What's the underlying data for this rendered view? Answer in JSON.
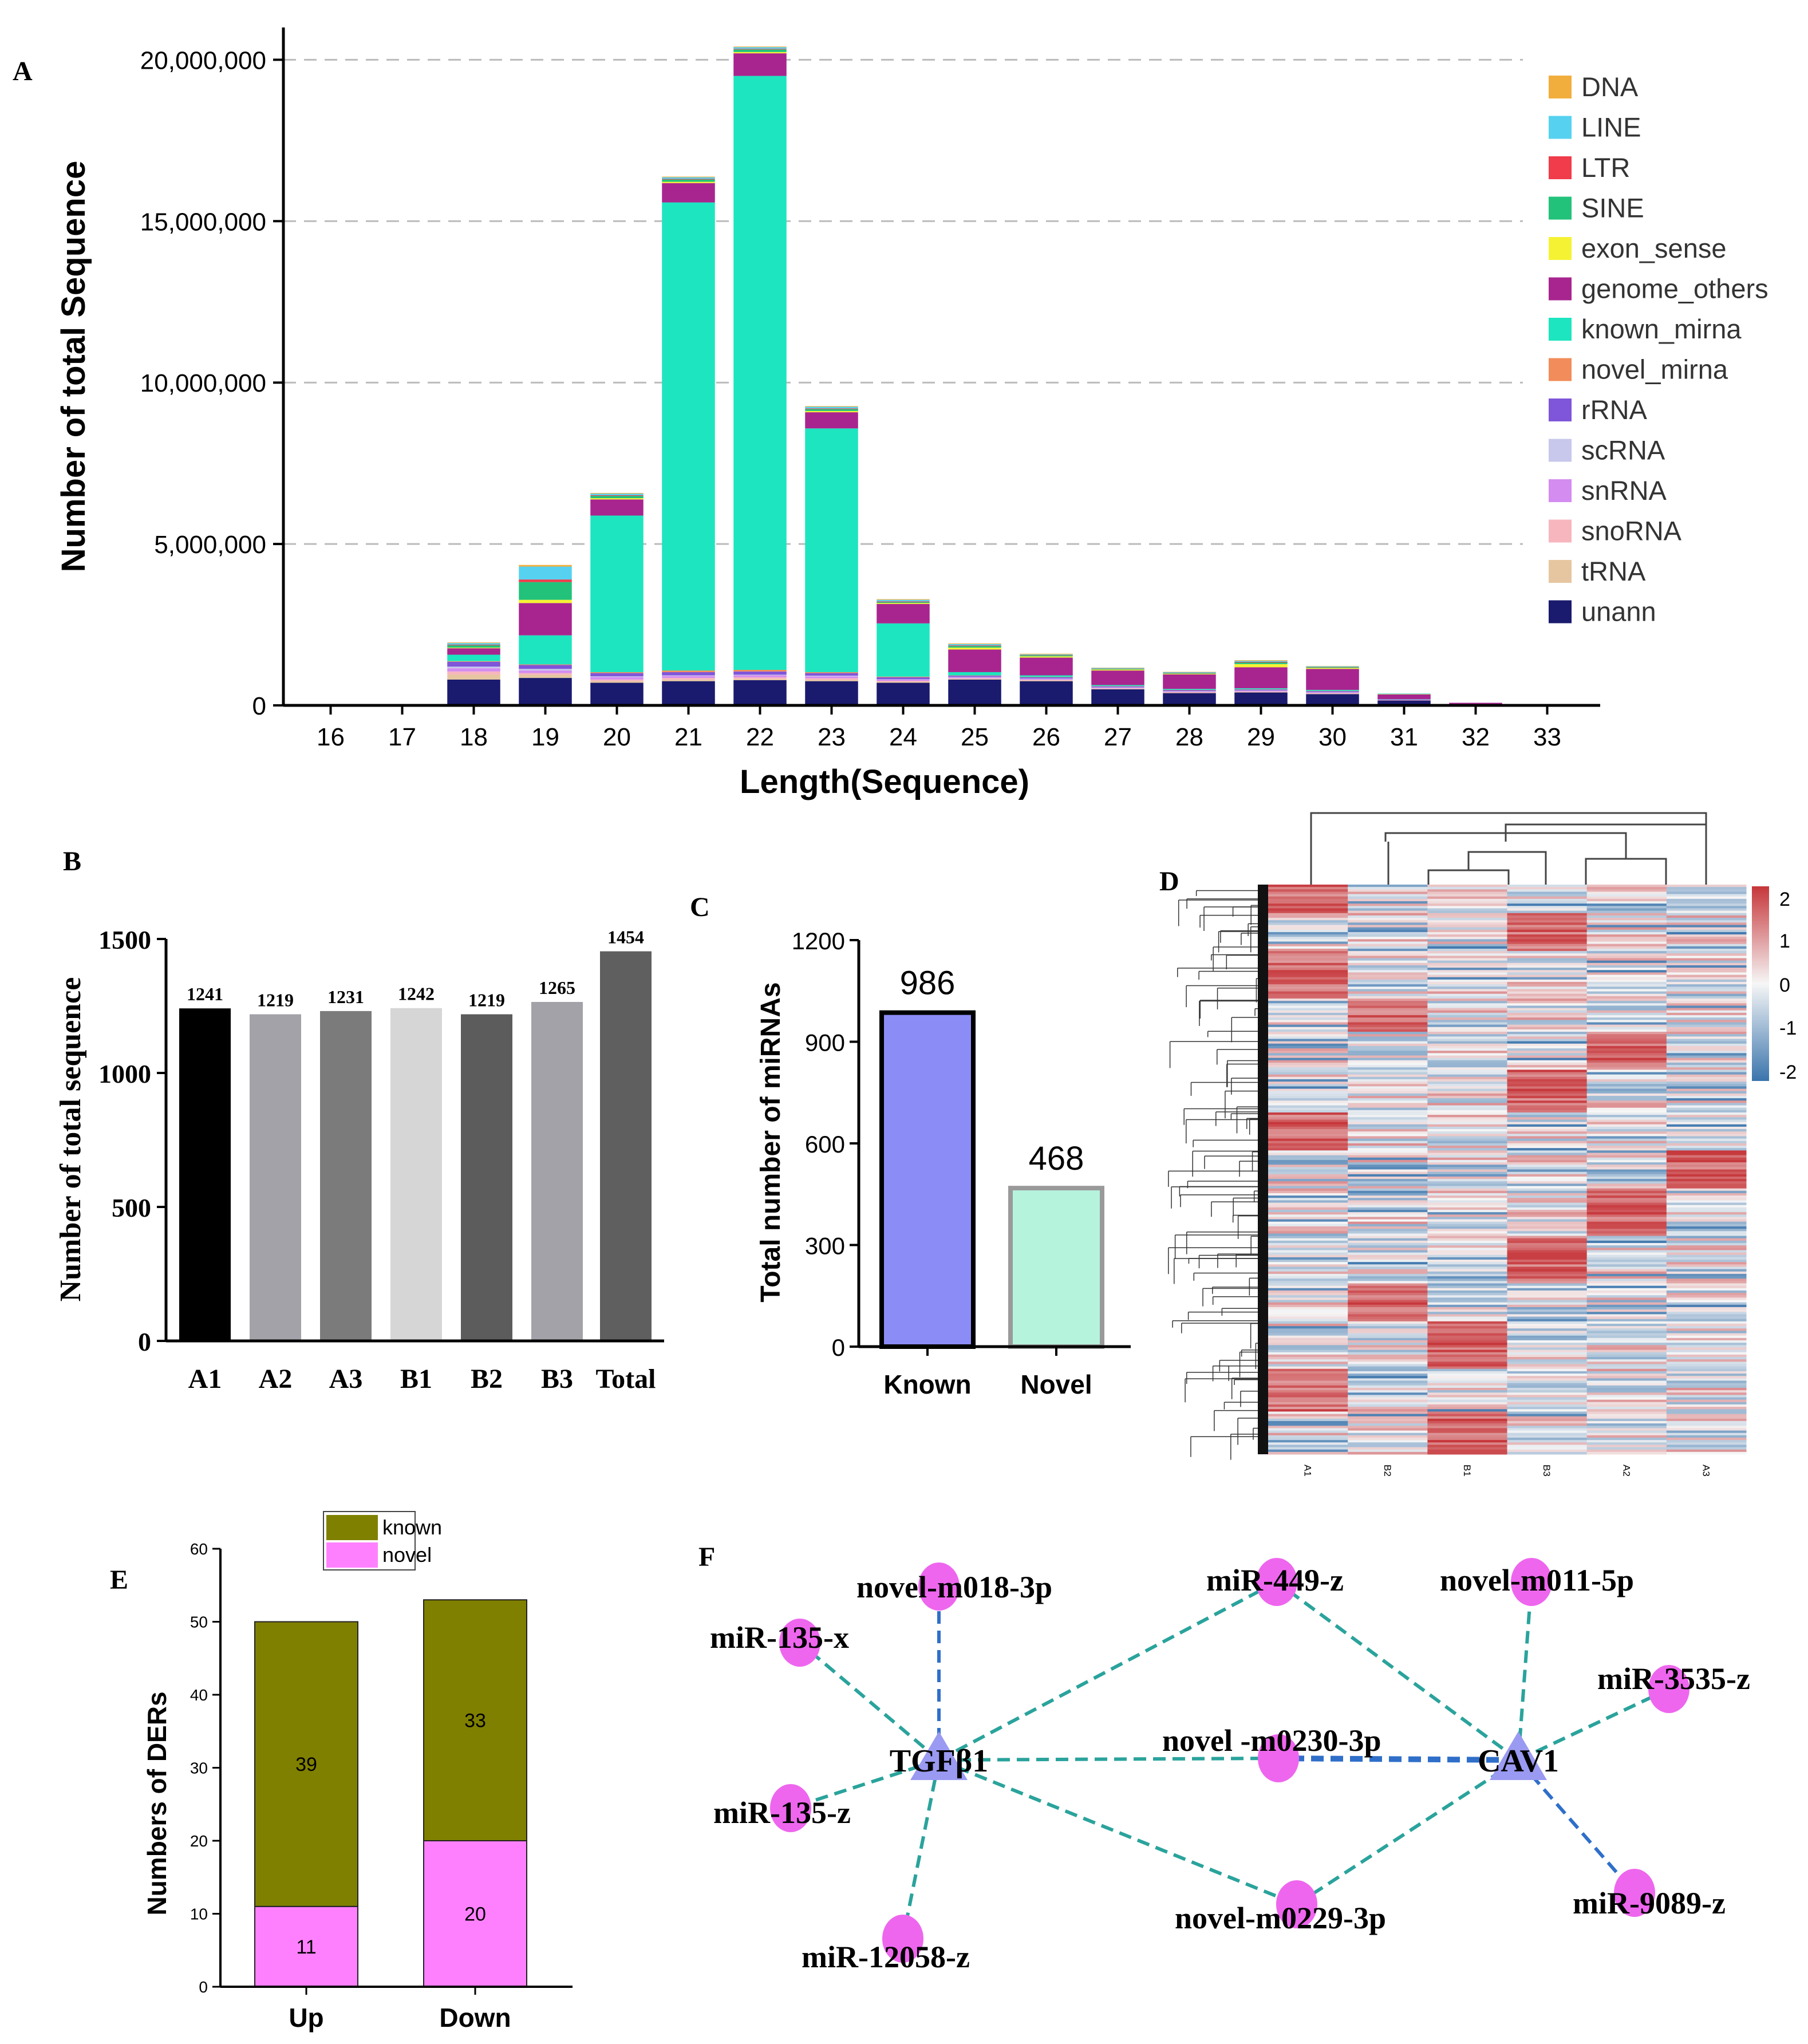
{
  "panels": {
    "A": {
      "label": "A"
    },
    "B": {
      "label": "B"
    },
    "C": {
      "label": "C"
    },
    "D": {
      "label": "D"
    },
    "E": {
      "label": "E"
    },
    "F": {
      "label": "F"
    }
  },
  "chart_data": [
    {
      "id": "A",
      "type": "bar",
      "stacked": true,
      "xlabel": "Length(Sequence)",
      "ylabel": "Number of total Sequence",
      "ylim": [
        0,
        21000000
      ],
      "yticks": [
        0,
        5000000,
        10000000,
        15000000,
        20000000
      ],
      "ytick_labels": [
        "0",
        "5,000,000",
        "10,000,000",
        "15,000,000",
        "20,000,000"
      ],
      "grid": "dashed horizontal",
      "legend_position": "right",
      "categories": [
        "16",
        "17",
        "18",
        "19",
        "20",
        "21",
        "22",
        "23",
        "24",
        "25",
        "26",
        "27",
        "28",
        "29",
        "30",
        "31",
        "32",
        "33"
      ],
      "series": [
        {
          "name": "unann",
          "color": "#1a1a6e",
          "values": [
            0,
            0,
            800000,
            850000,
            700000,
            750000,
            780000,
            750000,
            700000,
            800000,
            750000,
            500000,
            380000,
            400000,
            350000,
            150000,
            30000,
            0
          ]
        },
        {
          "name": "tRNA",
          "color": "#e6c6a0",
          "values": [
            0,
            0,
            150000,
            100000,
            50000,
            50000,
            40000,
            40000,
            30000,
            20000,
            20000,
            10000,
            10000,
            10000,
            10000,
            0,
            0,
            0
          ]
        },
        {
          "name": "snoRNA",
          "color": "#f7b6bd",
          "values": [
            0,
            0,
            100000,
            50000,
            50000,
            50000,
            50000,
            50000,
            30000,
            20000,
            20000,
            20000,
            20000,
            20000,
            20000,
            10000,
            0,
            0
          ]
        },
        {
          "name": "snRNA",
          "color": "#d48cf0",
          "values": [
            0,
            0,
            100000,
            80000,
            80000,
            60000,
            60000,
            60000,
            40000,
            30000,
            30000,
            20000,
            20000,
            20000,
            20000,
            10000,
            0,
            0
          ]
        },
        {
          "name": "scRNA",
          "color": "#c8c8ec",
          "values": [
            0,
            0,
            50000,
            50000,
            20000,
            20000,
            20000,
            20000,
            10000,
            10000,
            10000,
            10000,
            10000,
            10000,
            10000,
            0,
            0,
            0
          ]
        },
        {
          "name": "rRNA",
          "color": "#7f55d9",
          "values": [
            0,
            0,
            150000,
            120000,
            100000,
            100000,
            100000,
            80000,
            60000,
            40000,
            40000,
            30000,
            30000,
            30000,
            30000,
            10000,
            0,
            0
          ]
        },
        {
          "name": "novel_mirna",
          "color": "#f28c5a",
          "values": [
            0,
            0,
            20000,
            20000,
            30000,
            50000,
            50000,
            30000,
            20000,
            10000,
            10000,
            10000,
            10000,
            10000,
            10000,
            0,
            0,
            0
          ]
        },
        {
          "name": "known_mirna",
          "color": "#1de5bf",
          "values": [
            0,
            0,
            200000,
            900000,
            4850000,
            14500000,
            18400000,
            7550000,
            1650000,
            100000,
            50000,
            30000,
            30000,
            30000,
            30000,
            10000,
            0,
            0
          ]
        },
        {
          "name": "genome_others",
          "color": "#a8258f",
          "values": [
            0,
            0,
            200000,
            1000000,
            500000,
            600000,
            700000,
            500000,
            600000,
            700000,
            550000,
            450000,
            450000,
            650000,
            650000,
            150000,
            50000,
            0
          ]
        },
        {
          "name": "exon_sense",
          "color": "#f5f234",
          "values": [
            0,
            0,
            20000,
            100000,
            40000,
            40000,
            40000,
            40000,
            30000,
            60000,
            40000,
            30000,
            20000,
            100000,
            30000,
            10000,
            0,
            0
          ]
        },
        {
          "name": "SINE",
          "color": "#22c27a",
          "values": [
            0,
            0,
            70000,
            550000,
            70000,
            70000,
            80000,
            60000,
            30000,
            50000,
            30000,
            20000,
            20000,
            50000,
            20000,
            10000,
            0,
            0
          ]
        },
        {
          "name": "LTR",
          "color": "#f03c4b",
          "values": [
            0,
            0,
            20000,
            80000,
            20000,
            20000,
            20000,
            20000,
            20000,
            20000,
            10000,
            10000,
            10000,
            20000,
            10000,
            0,
            0,
            0
          ]
        },
        {
          "name": "LINE",
          "color": "#56d2f0",
          "values": [
            0,
            0,
            50000,
            400000,
            50000,
            50000,
            50000,
            50000,
            50000,
            40000,
            20000,
            20000,
            20000,
            30000,
            20000,
            10000,
            0,
            0
          ]
        },
        {
          "name": "DNA",
          "color": "#f2ae3c",
          "values": [
            0,
            0,
            20000,
            50000,
            20000,
            20000,
            20000,
            20000,
            20000,
            20000,
            20000,
            10000,
            10000,
            20000,
            10000,
            0,
            0,
            0
          ]
        }
      ]
    },
    {
      "id": "B",
      "type": "bar",
      "ylabel": "Number of total sequence",
      "ylim": [
        0,
        1500
      ],
      "yticks": [
        0,
        500,
        1000,
        1500
      ],
      "categories": [
        "A1",
        "A2",
        "A3",
        "B1",
        "B2",
        "B3",
        "Total"
      ],
      "values": [
        1241,
        1219,
        1231,
        1242,
        1219,
        1265,
        1454
      ],
      "value_labels": [
        "1241",
        "1219",
        "1231",
        "1242",
        "1219",
        "1265",
        "1454"
      ],
      "colors": [
        "#000000",
        "#a2a2a8",
        "#7b7b7b",
        "#d6d6d6",
        "#5c5c5c",
        "#a2a2a8",
        "#5f5f5f"
      ]
    },
    {
      "id": "C",
      "type": "bar",
      "ylabel": "Total number of miRNAs",
      "ylim": [
        0,
        1200
      ],
      "yticks": [
        0,
        300,
        600,
        900,
        1200
      ],
      "categories": [
        "Known",
        "Novel"
      ],
      "values": [
        986,
        468
      ],
      "value_labels": [
        "986",
        "468"
      ],
      "colors": [
        "#8b8cf5",
        "#b5f3dc"
      ],
      "edge_colors": [
        "#000000",
        "#9a9a9a"
      ]
    },
    {
      "id": "D",
      "type": "heatmap",
      "columns": [
        "A1",
        "B2",
        "B1",
        "B3",
        "A2",
        "A3"
      ],
      "colorbar_ticks": [
        "2",
        "1",
        "0",
        "-1",
        "-2"
      ],
      "colorbar_range": [
        -2,
        2
      ],
      "colors": {
        "high": "#c6363a",
        "mid": "#f6f6f6",
        "low": "#3a74ac"
      }
    },
    {
      "id": "E",
      "type": "bar",
      "stacked": true,
      "ylabel": "Numbers of DERs",
      "ylim": [
        0,
        60
      ],
      "yticks": [
        0,
        10,
        20,
        30,
        40,
        50,
        60
      ],
      "categories": [
        "Up",
        "Down"
      ],
      "legend_position": "top",
      "series": [
        {
          "name": "novel",
          "color": "#ff80ff",
          "values": [
            11,
            20
          ],
          "labels": [
            "11",
            "20"
          ]
        },
        {
          "name": "known",
          "color": "#808000",
          "values": [
            39,
            33
          ],
          "labels": [
            "39",
            "33"
          ]
        }
      ]
    }
  ],
  "network": {
    "id": "F",
    "hub_color": "#9a9af2",
    "node_color": "#ee66ee",
    "edge_teal": "#2aa39c",
    "edge_blue": "#2f6fc9",
    "hubs": [
      "TGFβ1",
      "CAV1"
    ],
    "mirnas": [
      "novel-m018-3p",
      "miR-135-x",
      "miR-135-z",
      "miR-12058-z",
      "miR-449-z",
      "novel -m0230-3p",
      "novel-m0229-3p",
      "novel-m011-5p",
      "miR-3535-z",
      "miR-9089-z"
    ]
  }
}
